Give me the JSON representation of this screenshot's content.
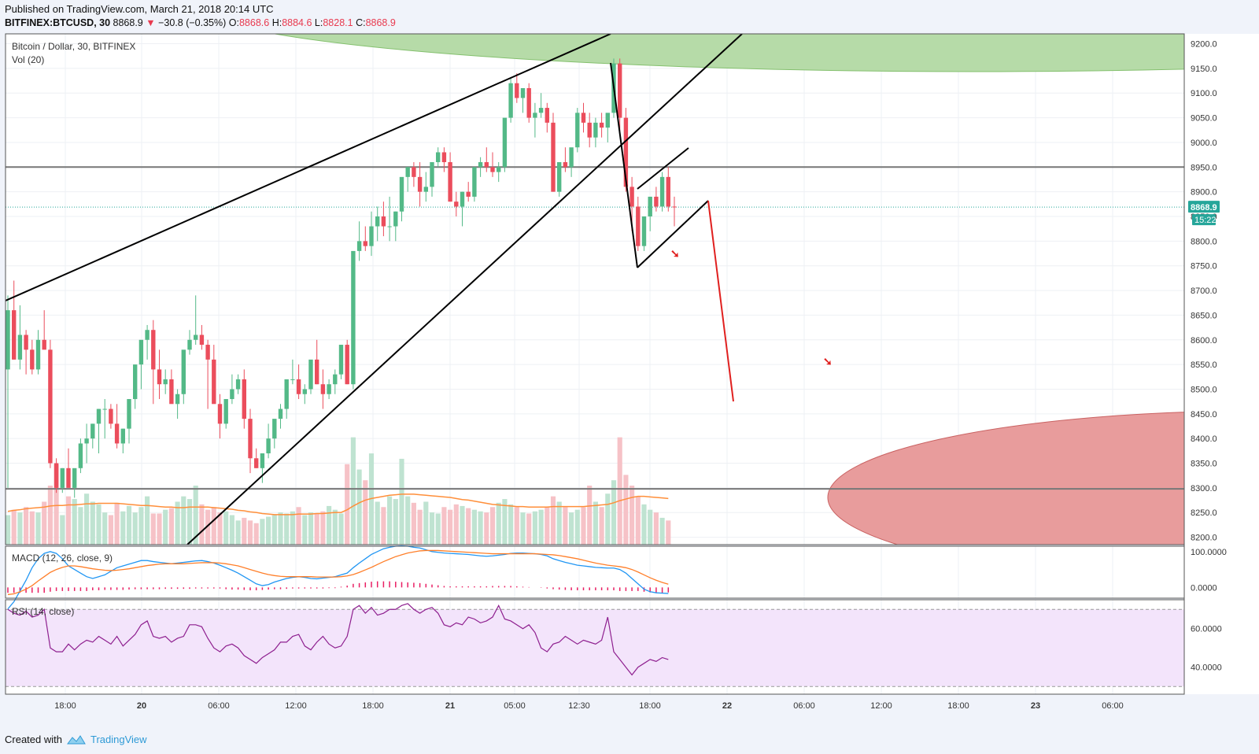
{
  "header": {
    "published": "Published on TradingView.com, March 21, 2018 20:14 UTC",
    "symbol": "BITFINEX:BTCUSD, 30",
    "last": "8868.9",
    "change": "−30.8 (−0.35%)",
    "o_label": "O:",
    "o_value": "8868.6",
    "h_label": "H:",
    "h_value": "8884.6",
    "l_label": "L:",
    "l_value": "8828.1",
    "c_label": "C:",
    "c_value": "8868.9"
  },
  "footer": {
    "created_with": "Created with",
    "brand": "TradingView"
  },
  "colors": {
    "up": "#53b987",
    "down": "#eb4d5c",
    "up_vol": "#bfe3d1",
    "down_vol": "#f6c2c7",
    "ma": "#ff8f3a",
    "macd": "#2196f3",
    "signal": "#ff7f2a",
    "rsi": "#8e1f8f",
    "rsi_band": "#f3e4fb",
    "resist_zone": "#b6dba8",
    "support_zone": "#e89c9c",
    "annot_red": "#e0201f"
  },
  "chart_data": [
    {
      "type": "candlestick",
      "title": "Bitcoin / Dollar, 30, BITFINEX",
      "indicator_label": "Vol (20)",
      "price_labels": [
        "9200.0",
        "9150.0",
        "9100.0",
        "9050.0",
        "9000.0",
        "8950.0",
        "8900.0",
        "8850.0",
        "8800.0",
        "8750.0",
        "8700.0",
        "8650.0",
        "8600.0",
        "8550.0",
        "8500.0",
        "8450.0",
        "8400.0",
        "8350.0",
        "8300.0",
        "8250.0",
        "8200.0"
      ],
      "ylim": [
        8185,
        9220
      ],
      "x_tick_labels": [
        "18:00",
        "20",
        "06:00",
        "12:00",
        "18:00",
        "21",
        "05:00",
        "12:30",
        "18:00",
        "22",
        "06:00",
        "12:00",
        "18:00",
        "23",
        "06:00"
      ],
      "last_price_label": "8868.9",
      "countdown_label": "15:22",
      "horizontal_levels": [
        8950,
        8298
      ],
      "current_price_line": 8868.9,
      "candles_ohlc": [
        [
          8540,
          8690,
          8300,
          8660
        ],
        [
          8660,
          8720,
          8560,
          8560
        ],
        [
          8560,
          8670,
          8540,
          8610
        ],
        [
          8610,
          8620,
          8530,
          8580
        ],
        [
          8580,
          8600,
          8530,
          8540
        ],
        [
          8540,
          8620,
          8530,
          8600
        ],
        [
          8600,
          8660,
          8590,
          8580
        ],
        [
          8580,
          8600,
          8340,
          8350
        ],
        [
          8350,
          8360,
          8290,
          8300
        ],
        [
          8300,
          8340,
          8290,
          8340
        ],
        [
          8340,
          8380,
          8310,
          8300
        ],
        [
          8300,
          8330,
          8280,
          8340
        ],
        [
          8340,
          8400,
          8330,
          8390
        ],
        [
          8390,
          8430,
          8350,
          8400
        ],
        [
          8400,
          8430,
          8380,
          8430
        ],
        [
          8430,
          8460,
          8370,
          8460
        ],
        [
          8460,
          8480,
          8400,
          8460
        ],
        [
          8460,
          8470,
          8420,
          8430
        ],
        [
          8430,
          8470,
          8380,
          8390
        ],
        [
          8390,
          8420,
          8370,
          8420
        ],
        [
          8420,
          8450,
          8390,
          8480
        ],
        [
          8480,
          8550,
          8460,
          8550
        ],
        [
          8550,
          8580,
          8500,
          8600
        ],
        [
          8600,
          8630,
          8560,
          8620
        ],
        [
          8620,
          8640,
          8470,
          8540
        ],
        [
          8540,
          8580,
          8480,
          8510
        ],
        [
          8510,
          8540,
          8490,
          8520
        ],
        [
          8520,
          8540,
          8490,
          8470
        ],
        [
          8470,
          8500,
          8440,
          8490
        ],
        [
          8490,
          8530,
          8470,
          8580
        ],
        [
          8580,
          8620,
          8570,
          8600
        ],
        [
          8600,
          8690,
          8590,
          8610
        ],
        [
          8610,
          8630,
          8580,
          8590
        ],
        [
          8590,
          8600,
          8460,
          8560
        ],
        [
          8560,
          8590,
          8480,
          8470
        ],
        [
          8470,
          8490,
          8400,
          8430
        ],
        [
          8430,
          8470,
          8420,
          8480
        ],
        [
          8480,
          8530,
          8470,
          8500
        ],
        [
          8500,
          8530,
          8490,
          8520
        ],
        [
          8520,
          8540,
          8420,
          8440
        ],
        [
          8440,
          8460,
          8330,
          8360
        ],
        [
          8360,
          8380,
          8340,
          8340
        ],
        [
          8340,
          8370,
          8310,
          8370
        ],
        [
          8370,
          8430,
          8360,
          8400
        ],
        [
          8400,
          8430,
          8380,
          8440
        ],
        [
          8440,
          8470,
          8420,
          8460
        ],
        [
          8460,
          8480,
          8440,
          8520
        ],
        [
          8520,
          8560,
          8510,
          8520
        ],
        [
          8520,
          8550,
          8480,
          8490
        ],
        [
          8490,
          8510,
          8470,
          8500
        ],
        [
          8500,
          8540,
          8490,
          8560
        ],
        [
          8560,
          8600,
          8510,
          8510
        ],
        [
          8510,
          8540,
          8460,
          8490
        ],
        [
          8490,
          8520,
          8480,
          8510
        ],
        [
          8510,
          8540,
          8490,
          8530
        ],
        [
          8530,
          8590,
          8520,
          8590
        ],
        [
          8590,
          8600,
          8510,
          8510
        ],
        [
          8510,
          8680,
          8500,
          8780
        ],
        [
          8780,
          8840,
          8760,
          8800
        ],
        [
          8800,
          8830,
          8780,
          8790
        ],
        [
          8790,
          8860,
          8770,
          8830
        ],
        [
          8830,
          8870,
          8800,
          8850
        ],
        [
          8850,
          8880,
          8810,
          8830
        ],
        [
          8830,
          8890,
          8800,
          8830
        ],
        [
          8830,
          8860,
          8800,
          8860
        ],
        [
          8860,
          8920,
          8840,
          8930
        ],
        [
          8930,
          8950,
          8900,
          8950
        ],
        [
          8950,
          8960,
          8910,
          8930
        ],
        [
          8930,
          8960,
          8870,
          8900
        ],
        [
          8900,
          8940,
          8880,
          8910
        ],
        [
          8910,
          8950,
          8890,
          8960
        ],
        [
          8960,
          8990,
          8950,
          8980
        ],
        [
          8980,
          8990,
          8940,
          8960
        ],
        [
          8960,
          8980,
          8880,
          8880
        ],
        [
          8880,
          8900,
          8850,
          8870
        ],
        [
          8870,
          8900,
          8830,
          8900
        ],
        [
          8900,
          8920,
          8880,
          8890
        ],
        [
          8890,
          8950,
          8880,
          8950
        ],
        [
          8950,
          8970,
          8930,
          8960
        ],
        [
          8960,
          8990,
          8940,
          8950
        ],
        [
          8950,
          8980,
          8930,
          8940
        ],
        [
          8940,
          8960,
          8920,
          8950
        ],
        [
          8950,
          9010,
          8940,
          9050
        ],
        [
          9050,
          9130,
          9040,
          9120
        ],
        [
          9120,
          9140,
          9080,
          9090
        ],
        [
          9090,
          9110,
          9060,
          9110
        ],
        [
          9110,
          9120,
          9040,
          9050
        ],
        [
          9050,
          9080,
          9010,
          9060
        ],
        [
          9060,
          9100,
          9050,
          9070
        ],
        [
          9070,
          9080,
          9020,
          9040
        ],
        [
          9040,
          9060,
          8900,
          8900
        ],
        [
          8900,
          8950,
          8890,
          8960
        ],
        [
          8960,
          8990,
          8940,
          8950
        ],
        [
          8950,
          8970,
          8930,
          8990
        ],
        [
          8990,
          9070,
          8980,
          9060
        ],
        [
          9060,
          9080,
          9020,
          9040
        ],
        [
          9040,
          9060,
          8990,
          9010
        ],
        [
          9010,
          9050,
          8990,
          9040
        ],
        [
          9040,
          9060,
          9010,
          9030
        ],
        [
          9030,
          9050,
          9000,
          9060
        ],
        [
          9060,
          9170,
          9050,
          9160
        ],
        [
          9160,
          9170,
          9020,
          9050
        ],
        [
          9050,
          9070,
          8900,
          8910
        ],
        [
          8910,
          8930,
          8820,
          8870
        ],
        [
          8870,
          8890,
          8780,
          8790
        ],
        [
          8790,
          8850,
          8780,
          8850
        ],
        [
          8850,
          8870,
          8820,
          8890
        ],
        [
          8890,
          8910,
          8860,
          8870
        ],
        [
          8870,
          8940,
          8860,
          8930
        ],
        [
          8930,
          8950,
          8860,
          8870
        ],
        [
          8870,
          8890,
          8830,
          8869
        ]
      ],
      "volumes": [
        55,
        65,
        60,
        70,
        62,
        60,
        80,
        110,
        150,
        55,
        90,
        85,
        70,
        95,
        80,
        75,
        60,
        55,
        78,
        62,
        72,
        60,
        70,
        90,
        58,
        58,
        65,
        68,
        80,
        90,
        85,
        110,
        75,
        65,
        70,
        60,
        62,
        55,
        45,
        50,
        45,
        40,
        48,
        52,
        55,
        60,
        58,
        62,
        70,
        55,
        60,
        58,
        62,
        72,
        65,
        58,
        150,
        200,
        140,
        120,
        170,
        80,
        70,
        90,
        85,
        160,
        90,
        78,
        65,
        80,
        60,
        58,
        70,
        65,
        75,
        72,
        68,
        65,
        62,
        60,
        70,
        78,
        85,
        75,
        70,
        60,
        58,
        62,
        65,
        70,
        90,
        80,
        70,
        60,
        65,
        70,
        110,
        80,
        70,
        95,
        120,
        200,
        130,
        110,
        90,
        75,
        65,
        60,
        50,
        45
      ],
      "volume_ma": [
        62,
        64,
        65,
        67,
        68,
        69,
        70,
        72,
        73,
        73,
        74,
        74,
        75,
        76,
        76,
        77,
        77,
        77,
        77,
        76,
        75,
        74,
        73,
        73,
        72,
        71,
        70,
        70,
        69,
        69,
        70,
        70,
        70,
        70,
        69,
        68,
        67,
        66,
        64,
        63,
        61,
        60,
        58,
        57,
        56,
        56,
        56,
        56,
        57,
        57,
        57,
        58,
        58,
        59,
        60,
        60,
        65,
        72,
        78,
        83,
        86,
        88,
        90,
        92,
        93,
        94,
        94,
        94,
        93,
        92,
        91,
        90,
        89,
        88,
        86,
        84,
        83,
        81,
        79,
        77,
        75,
        74,
        73,
        72,
        71,
        71,
        70,
        70,
        70,
        70,
        71,
        71,
        71,
        71,
        71,
        71,
        72,
        73,
        74,
        75,
        78,
        82,
        85,
        88,
        90,
        90,
        89,
        88,
        87,
        86
      ]
    },
    {
      "type": "line",
      "title": "MACD (12, 26, close, 9)",
      "y_tick_labels": [
        "100.0000",
        "0.0000"
      ],
      "ylim": [
        -30,
        115
      ],
      "series": [],
      "macd": [
        -60,
        -40,
        -10,
        20,
        55,
        80,
        95,
        100,
        95,
        80,
        60,
        50,
        40,
        30,
        25,
        30,
        35,
        45,
        55,
        60,
        65,
        70,
        75,
        75,
        72,
        70,
        68,
        66,
        68,
        70,
        72,
        74,
        75,
        72,
        68,
        62,
        55,
        48,
        40,
        30,
        20,
        10,
        5,
        8,
        15,
        20,
        25,
        28,
        30,
        28,
        25,
        24,
        26,
        28,
        30,
        35,
        40,
        55,
        68,
        80,
        92,
        100,
        108,
        112,
        115,
        116,
        115,
        112,
        110,
        105,
        100,
        98,
        96,
        95,
        94,
        93,
        92,
        90,
        88,
        87,
        88,
        90,
        92,
        95,
        96,
        96,
        95,
        94,
        92,
        88,
        80,
        75,
        70,
        66,
        62,
        60,
        58,
        56,
        55,
        54,
        54,
        50,
        40,
        25,
        10,
        -5,
        -12,
        -15,
        -16,
        -17
      ],
      "signal": [
        -20,
        -18,
        -12,
        -5,
        5,
        18,
        30,
        42,
        50,
        56,
        60,
        60,
        58,
        55,
        52,
        50,
        48,
        47,
        48,
        50,
        52,
        55,
        58,
        61,
        63,
        65,
        66,
        66,
        66,
        66,
        67,
        68,
        69,
        69,
        69,
        68,
        66,
        63,
        60,
        55,
        50,
        45,
        40,
        36,
        33,
        31,
        30,
        30,
        30,
        30,
        30,
        29,
        29,
        29,
        29,
        30,
        32,
        36,
        42,
        49,
        56,
        64,
        72,
        79,
        86,
        91,
        96,
        99,
        102,
        103,
        103,
        103,
        102,
        101,
        100,
        99,
        98,
        97,
        96,
        95,
        94,
        94,
        94,
        94,
        94,
        94,
        94,
        94,
        93,
        92,
        91,
        89,
        86,
        83,
        80,
        76,
        72,
        68,
        65,
        62,
        60,
        58,
        55,
        50,
        43,
        35,
        27,
        20,
        14,
        9
      ],
      "histogram": [
        -15,
        -15,
        -15,
        -15,
        -15,
        -15,
        -15,
        -12,
        -10,
        -10,
        -10,
        -10,
        -10,
        -10,
        -8,
        -8,
        -7,
        -7,
        -7,
        -7,
        -6,
        -5,
        -5,
        -5,
        -5,
        -5,
        -4,
        -4,
        -4,
        -4,
        -4,
        -3,
        -3,
        -3,
        -3,
        -3,
        -5,
        -6,
        -6,
        -7,
        -8,
        -8,
        -7,
        -6,
        -5,
        -5,
        -4,
        -3,
        -3,
        -3,
        -3,
        -3,
        -3,
        -2,
        -2,
        2,
        5,
        10,
        12,
        14,
        16,
        17,
        17,
        17,
        16,
        15,
        14,
        13,
        12,
        10,
        8,
        6,
        4,
        3,
        3,
        3,
        3,
        3,
        3,
        3,
        4,
        4,
        4,
        4,
        3,
        2,
        1,
        0,
        -1,
        -3,
        -5,
        -6,
        -7,
        -8,
        -8,
        -8,
        -8,
        -8,
        -8,
        -8,
        -8,
        -10,
        -10,
        -10,
        -10,
        -12,
        -14,
        -15,
        -16,
        -14
      ]
    },
    {
      "type": "line",
      "title": "RSI (14, close)",
      "y_tick_labels": [
        "60.0000",
        "40.0000"
      ],
      "ylim": [
        26,
        75
      ],
      "band": [
        30,
        70
      ],
      "rsi": [
        70,
        68,
        67,
        69,
        66,
        67,
        70,
        50,
        48,
        48,
        52,
        49,
        52,
        54,
        53,
        56,
        54,
        52,
        56,
        51,
        54,
        57,
        62,
        64,
        56,
        55,
        56,
        53,
        55,
        56,
        62,
        62,
        61,
        55,
        50,
        48,
        51,
        52,
        50,
        46,
        44,
        42,
        45,
        47,
        49,
        53,
        53,
        56,
        57,
        51,
        49,
        53,
        56,
        52,
        50,
        51,
        56,
        70,
        72,
        68,
        71,
        67,
        68,
        70,
        70,
        72,
        73,
        70,
        68,
        70,
        71,
        68,
        62,
        61,
        63,
        62,
        66,
        65,
        63,
        64,
        66,
        72,
        65,
        64,
        62,
        60,
        62,
        58,
        50,
        48,
        52,
        53,
        56,
        54,
        52,
        54,
        53,
        52,
        54,
        66,
        48,
        44,
        40,
        36,
        40,
        42,
        44,
        43,
        45,
        44
      ]
    }
  ],
  "annotations": {
    "resistance_zone_label": "",
    "support_zone_label": ""
  }
}
